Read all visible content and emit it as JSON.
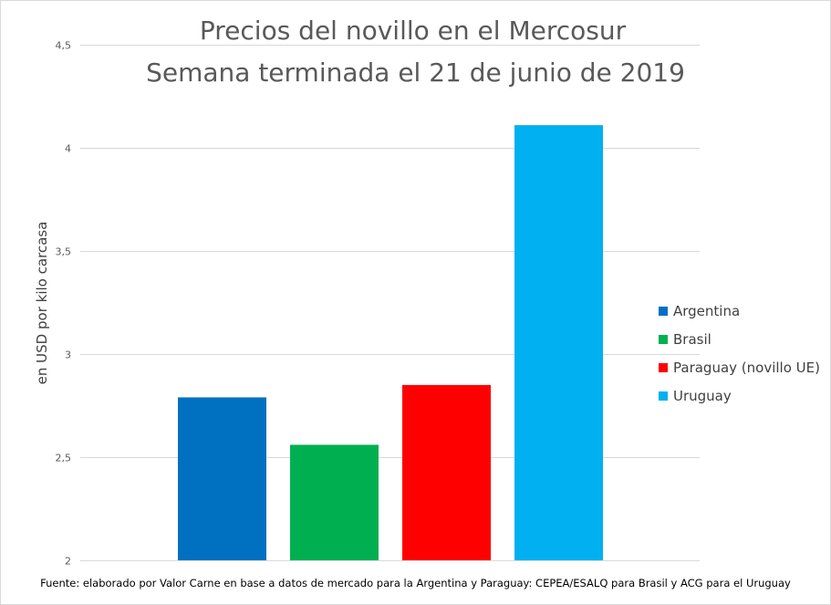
{
  "chart_data": {
    "type": "bar",
    "title": "Precios del novillo en el Mercosur",
    "subtitle": "Semana terminada el 21 de junio de 2019",
    "ylabel": "en USD por kilo carcasa",
    "ylim": [
      2,
      4.5
    ],
    "yticks": [
      2,
      2.5,
      3,
      3.5,
      4,
      4.5
    ],
    "ytick_labels": [
      "2",
      "2,5",
      "3",
      "3,5",
      "4",
      "4,5"
    ],
    "grid": true,
    "legend_position": "right",
    "series": [
      {
        "name": "Argentina",
        "value": 2.79,
        "color": "#0070C0"
      },
      {
        "name": "Brasil",
        "value": 2.56,
        "color": "#00B050"
      },
      {
        "name": "Paraguay (novillo UE)",
        "value": 2.85,
        "color": "#FF0000"
      },
      {
        "name": "Uruguay",
        "value": 4.11,
        "color": "#00B0F0"
      }
    ]
  },
  "footnote": "Fuente: elaborado por Valor Carne en base a datos de mercado para la Argentina y Paraguay: CEPEA/ESALQ para Brasil y ACG para el Uruguay"
}
